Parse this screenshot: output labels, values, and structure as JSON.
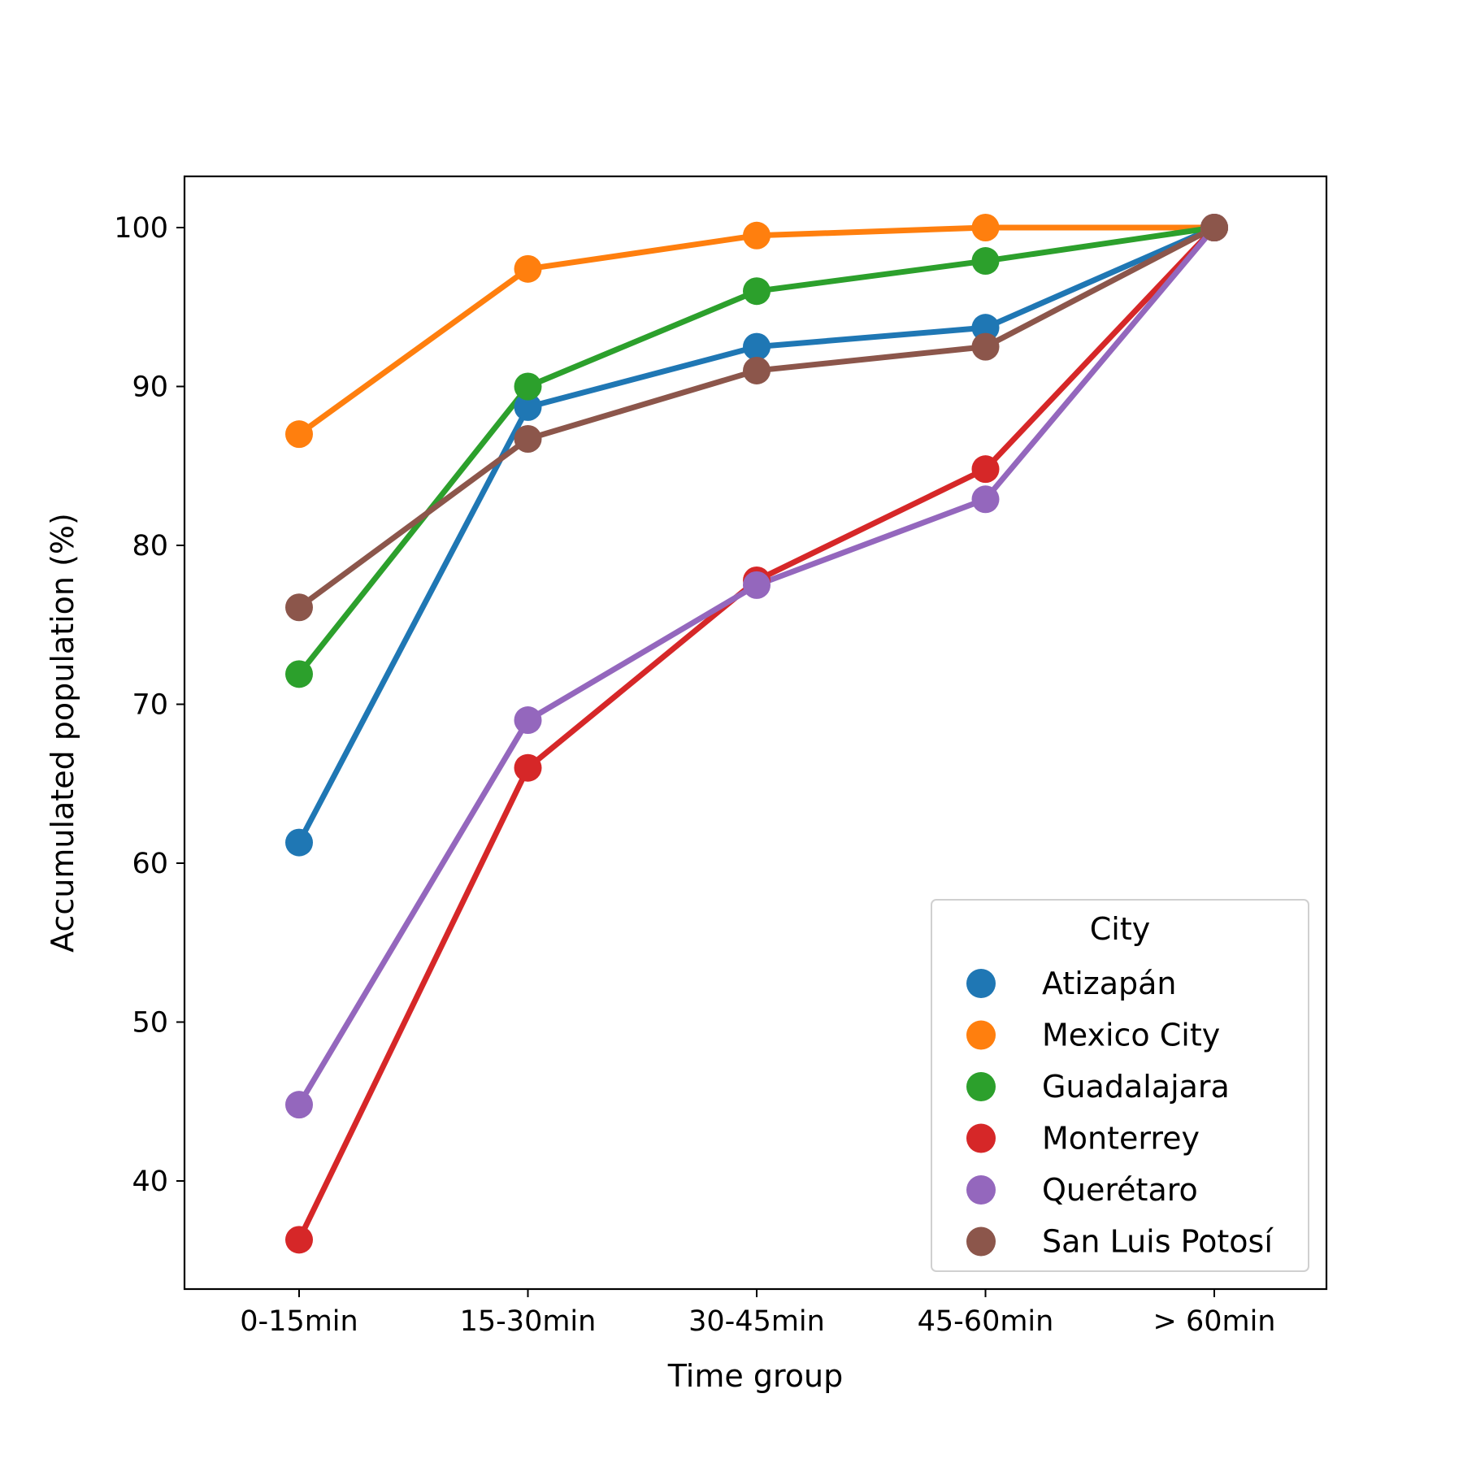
{
  "chart_data": {
    "type": "line",
    "title": "",
    "xlabel": "Time group",
    "ylabel": "Accumulated population (%)",
    "categories": [
      "0-15min",
      "15-30min",
      "30-45min",
      "45-60min",
      "> 60min"
    ],
    "ylim": [
      33,
      103
    ],
    "yticks": [
      40,
      50,
      60,
      70,
      80,
      90,
      100
    ],
    "grid": false,
    "legend": {
      "title": "City",
      "placement": "lower-right"
    },
    "series": [
      {
        "name": "Atizapán",
        "color": "#1f77b4",
        "values": [
          61.3,
          88.7,
          92.5,
          93.7,
          100
        ]
      },
      {
        "name": "Mexico City",
        "color": "#ff7f0e",
        "values": [
          87.0,
          97.4,
          99.5,
          100.0,
          100
        ]
      },
      {
        "name": "Guadalajara",
        "color": "#2ca02c",
        "values": [
          71.9,
          90.0,
          96.0,
          97.9,
          100
        ]
      },
      {
        "name": "Monterrey",
        "color": "#d62728",
        "values": [
          36.3,
          66.0,
          77.8,
          84.8,
          100
        ]
      },
      {
        "name": "Querétaro",
        "color": "#9467bd",
        "values": [
          44.8,
          69.0,
          77.5,
          82.9,
          100
        ]
      },
      {
        "name": "San Luis Potosí",
        "color": "#8c564b",
        "values": [
          76.1,
          86.7,
          91.0,
          92.5,
          100
        ]
      }
    ]
  }
}
